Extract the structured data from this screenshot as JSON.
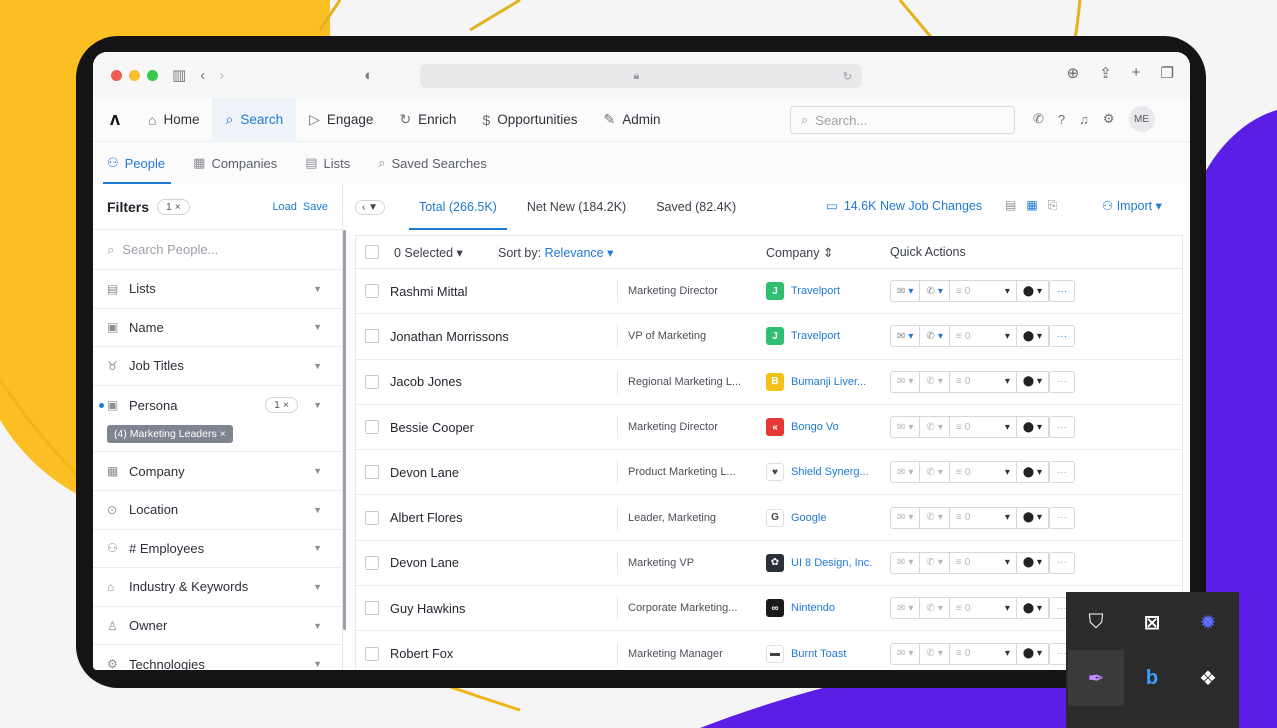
{
  "browser": {
    "url_reload_icon": "reload-icon"
  },
  "nav": {
    "items": [
      {
        "label": "Home",
        "icon": "home-icon"
      },
      {
        "label": "Search",
        "icon": "search-icon"
      },
      {
        "label": "Engage",
        "icon": "send-icon"
      },
      {
        "label": "Enrich",
        "icon": "refresh-icon"
      },
      {
        "label": "Opportunities",
        "icon": "dollar-icon"
      },
      {
        "label": "Admin",
        "icon": "tools-icon"
      }
    ],
    "search_placeholder": "Search...",
    "avatar": "ME"
  },
  "subtabs": [
    {
      "label": "People"
    },
    {
      "label": "Companies"
    },
    {
      "label": "Lists"
    },
    {
      "label": "Saved Searches"
    }
  ],
  "filters": {
    "title": "Filters",
    "count": "1",
    "load": "Load",
    "save": "Save",
    "search_placeholder": "Search People...",
    "rows": [
      {
        "label": "Lists"
      },
      {
        "label": "Name"
      },
      {
        "label": "Job Titles"
      },
      {
        "label": "Persona",
        "badge": "1"
      },
      {
        "label": "Company"
      },
      {
        "label": "Location"
      },
      {
        "label": "# Employees"
      },
      {
        "label": "Industry & Keywords"
      },
      {
        "label": "Owner"
      },
      {
        "label": "Technologies"
      }
    ],
    "persona_tag": "(4) Marketing Leaders"
  },
  "results": {
    "tabs": [
      "Total (266.5K)",
      "Net New (184.2K)",
      "Saved (82.4K)"
    ],
    "job_changes": "14.6K New Job Changes",
    "import": "Import",
    "selected": "0 Selected",
    "sort_label": "Sort by:",
    "sort_value": "Relevance",
    "col_company": "Company",
    "col_quick": "Quick Actions",
    "seq_count": "0",
    "rows": [
      {
        "name": "Rashmi Mittal",
        "title": "Marketing Director",
        "company": "Travelport",
        "logo_color": "#2fbf71",
        "logo": "J"
      },
      {
        "name": "Jonathan Morrissons",
        "title": "VP of Marketing",
        "company": "Travelport",
        "logo_color": "#2fbf71",
        "logo": "J"
      },
      {
        "name": "Jacob Jones",
        "title": "Regional Marketing L...",
        "company": "Bumanji Liver...",
        "logo_color": "#f2c21b",
        "logo": "B"
      },
      {
        "name": "Bessie Cooper",
        "title": "Marketing Director",
        "company": "Bongo Vo",
        "logo_color": "#e53935",
        "logo": "«"
      },
      {
        "name": "Devon Lane",
        "title": "Product Marketing L...",
        "company": "Shield Synerg...",
        "logo_color": "#ffffff",
        "logo": "♥"
      },
      {
        "name": "Albert Flores",
        "title": "Leader, Marketing",
        "company": "Google",
        "logo_color": "#ffffff",
        "logo": "G"
      },
      {
        "name": "Devon Lane",
        "title": "Marketing VP",
        "company": "UI 8 Design, Inc.",
        "logo_color": "#2b2f38",
        "logo": "✿"
      },
      {
        "name": "Guy Hawkins",
        "title": "Corporate Marketing...",
        "company": "Nintendo",
        "logo_color": "#1a1a1a",
        "logo": "∞"
      },
      {
        "name": "Robert Fox",
        "title": "Marketing Manager",
        "company": "Burnt Toast",
        "logo_color": "#ffffff",
        "logo": "▬"
      }
    ]
  },
  "colors": {
    "accent": "#1f7ad4",
    "yellow": "#fbbf24",
    "purple": "#5b1ee6"
  }
}
